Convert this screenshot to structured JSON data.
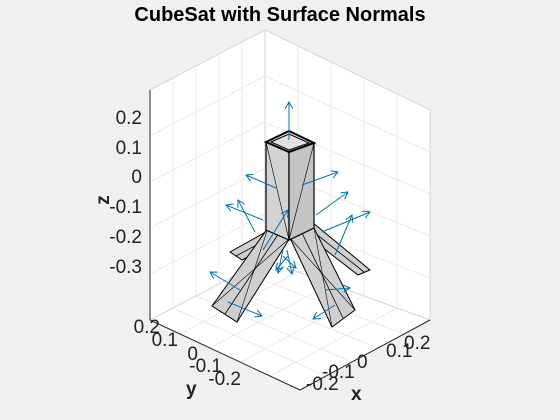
{
  "chart_data": {
    "type": "3d-surface-with-quiver",
    "title": "CubeSat with Surface Normals",
    "xlabel": "x",
    "ylabel": "y",
    "zlabel": "z",
    "z_ticks": [
      "0.2",
      "0.1",
      "0",
      "-0.1",
      "-0.2",
      "-0.3"
    ],
    "y_ticks": [
      "0.2",
      "0.1",
      "0",
      "-0.1",
      "-0.2"
    ],
    "x_ticks": [
      "-0.2",
      "-0.1",
      "0",
      "0.1",
      "0.2"
    ],
    "grid": true,
    "box": true,
    "view": "3d",
    "colors": {
      "background": "#f0f0f0",
      "axes_background": "#ffffff",
      "surface": "#cfcfcf",
      "edge": "#000000",
      "normals": "#0072bd",
      "grid": "#e6e6e6"
    },
    "components": [
      {
        "name": "body",
        "shape": "cuboid"
      },
      {
        "name": "panel-1",
        "shape": "deployable-panel"
      },
      {
        "name": "panel-2",
        "shape": "deployable-panel"
      },
      {
        "name": "panel-3",
        "shape": "deployable-panel"
      },
      {
        "name": "panel-4",
        "shape": "deployable-panel"
      }
    ]
  }
}
